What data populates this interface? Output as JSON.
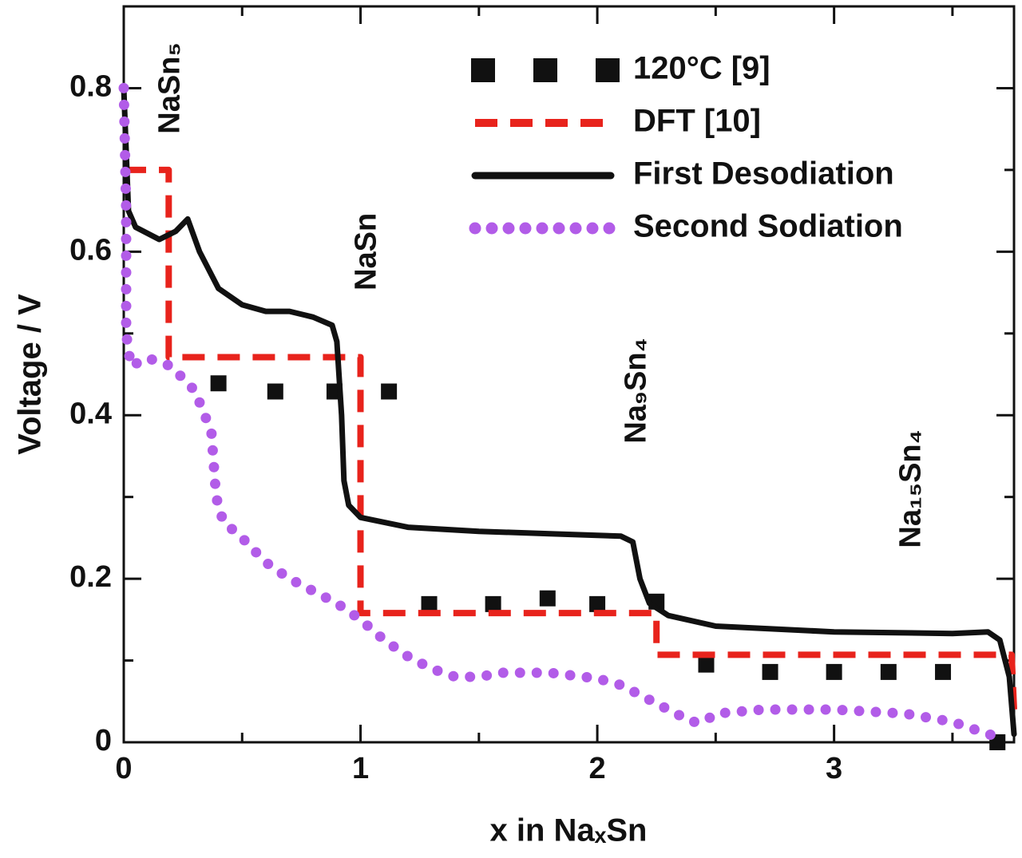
{
  "chart_data": {
    "type": "line",
    "x_label": "x in NaₓSn",
    "y_label": "Voltage / V",
    "xlim": [
      0,
      3.76
    ],
    "ylim": [
      0,
      0.9
    ],
    "xticks": [
      0,
      1,
      2,
      3
    ],
    "yticks": [
      0,
      0.2,
      0.4,
      0.6,
      0.8
    ],
    "xminor": [
      0.5,
      1.5,
      2.5,
      3.5
    ],
    "yminor": [
      0.1,
      0.3,
      0.5,
      0.7
    ],
    "grid": false,
    "legend": "upper right",
    "annotations": [
      "NaSn₅",
      "NaSn",
      "Na₉Sn₄",
      "Na₁₅Sn₄"
    ],
    "series": [
      {
        "name": "120°C [9]",
        "color": "#111111",
        "style": "markers",
        "x": [
          0.4,
          0.64,
          0.89,
          1.12,
          1.29,
          1.56,
          1.79,
          2.0,
          2.25,
          2.46,
          2.73,
          3.0,
          3.23,
          3.46,
          3.69
        ],
        "values": [
          0.439,
          0.429,
          0.429,
          0.429,
          0.169,
          0.169,
          0.176,
          0.169,
          0.172,
          0.095,
          0.086,
          0.086,
          0.086,
          0.086,
          0
        ]
      },
      {
        "name": "DFT [10]",
        "color": "#e8231c",
        "style": "dashed",
        "x": [
          0,
          0.19,
          0.19,
          1.0,
          1.0,
          2.25,
          2.25,
          3.75,
          3.76
        ],
        "values": [
          0.7,
          0.7,
          0.471,
          0.471,
          0.158,
          0.158,
          0.107,
          0.107,
          0.04
        ]
      },
      {
        "name": "First Desodiation",
        "color": "#111111",
        "style": "solid",
        "x": [
          0,
          0.02,
          0.05,
          0.15,
          0.22,
          0.27,
          0.32,
          0.4,
          0.5,
          0.6,
          0.7,
          0.8,
          0.88,
          0.9,
          0.92,
          0.93,
          0.95,
          1.0,
          1.2,
          1.5,
          1.8,
          2.1,
          2.15,
          2.18,
          2.22,
          2.3,
          2.5,
          3.0,
          3.5,
          3.65,
          3.7,
          3.74,
          3.76
        ],
        "values": [
          0.8,
          0.65,
          0.63,
          0.615,
          0.625,
          0.64,
          0.6,
          0.555,
          0.535,
          0.527,
          0.527,
          0.52,
          0.51,
          0.49,
          0.4,
          0.32,
          0.29,
          0.275,
          0.263,
          0.258,
          0.255,
          0.252,
          0.245,
          0.2,
          0.17,
          0.155,
          0.142,
          0.135,
          0.133,
          0.135,
          0.125,
          0.08,
          0.01
        ]
      },
      {
        "name": "Second Sodiation",
        "color": "#b25ce8",
        "style": "dotted",
        "x": [
          0,
          0.01,
          0.01,
          0.03,
          0.1,
          0.2,
          0.3,
          0.37,
          0.39,
          0.42,
          0.5,
          0.6,
          0.7,
          0.8,
          0.9,
          1.0,
          1.1,
          1.2,
          1.3,
          1.4,
          1.5,
          1.6,
          1.8,
          2.0,
          2.1,
          2.2,
          2.3,
          2.4,
          2.45,
          2.5,
          2.7,
          3.0,
          3.3,
          3.5,
          3.65,
          3.72
        ],
        "values": [
          0.8,
          0.65,
          0.5,
          0.46,
          0.47,
          0.46,
          0.43,
          0.38,
          0.3,
          0.27,
          0.25,
          0.22,
          0.2,
          0.185,
          0.17,
          0.15,
          0.125,
          0.105,
          0.09,
          0.08,
          0.08,
          0.085,
          0.085,
          0.078,
          0.07,
          0.055,
          0.04,
          0.025,
          0.025,
          0.035,
          0.04,
          0.04,
          0.035,
          0.025,
          0.01,
          0.005
        ]
      }
    ]
  }
}
